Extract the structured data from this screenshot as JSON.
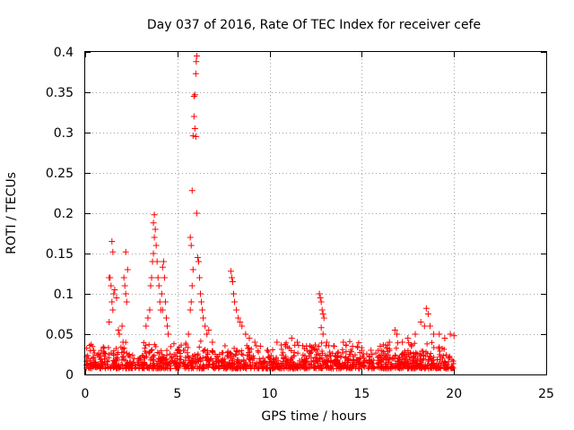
{
  "chart_data": {
    "type": "scatter",
    "title": "Day 037 of 2016, Rate Of TEC Index for receiver cefe",
    "xlabel": "GPS time / hours",
    "ylabel": "ROTI / TECUs",
    "xlim": [
      0,
      25
    ],
    "ylim": [
      0,
      0.4
    ],
    "xticks": [
      0,
      5,
      10,
      15,
      20,
      25
    ],
    "xtick_labels": [
      "0",
      "5",
      "10",
      "15",
      "20",
      "25"
    ],
    "yticks": [
      0,
      0.05,
      0.1,
      0.15,
      0.2,
      0.25,
      0.3,
      0.35,
      0.4
    ],
    "ytick_labels": [
      "0",
      "0.05",
      "0.1",
      "0.15",
      "0.2",
      "0.25",
      "0.3",
      "0.35",
      "0.4"
    ],
    "grid": true,
    "legend": false,
    "marker": "+",
    "color": "#ff0000",
    "series": [
      {
        "values": [
          [
            1.3,
            0.12
          ],
          [
            1.35,
            0.12
          ],
          [
            1.4,
            0.11
          ],
          [
            1.45,
            0.09
          ],
          [
            1.5,
            0.08
          ],
          [
            1.45,
            0.165
          ],
          [
            1.5,
            0.152
          ],
          [
            1.3,
            0.065
          ],
          [
            1.55,
            0.1
          ],
          [
            1.6,
            0.105
          ],
          [
            1.7,
            0.095
          ],
          [
            1.8,
            0.055
          ],
          [
            1.85,
            0.05
          ],
          [
            2.0,
            0.06
          ],
          [
            2.05,
            0.04
          ],
          [
            2.1,
            0.12
          ],
          [
            2.15,
            0.11
          ],
          [
            2.2,
            0.1
          ],
          [
            2.25,
            0.09
          ],
          [
            2.2,
            0.152
          ],
          [
            2.3,
            0.13
          ],
          [
            3.3,
            0.06
          ],
          [
            3.4,
            0.07
          ],
          [
            3.5,
            0.08
          ],
          [
            3.55,
            0.11
          ],
          [
            3.6,
            0.12
          ],
          [
            3.65,
            0.14
          ],
          [
            3.7,
            0.15
          ],
          [
            3.75,
            0.17
          ],
          [
            3.7,
            0.188
          ],
          [
            3.75,
            0.198
          ],
          [
            3.8,
            0.18
          ],
          [
            3.85,
            0.16
          ],
          [
            3.9,
            0.14
          ],
          [
            3.95,
            0.12
          ],
          [
            4.0,
            0.11
          ],
          [
            4.05,
            0.09
          ],
          [
            4.1,
            0.08
          ],
          [
            4.15,
            0.1
          ],
          [
            4.2,
            0.08
          ],
          [
            4.2,
            0.133
          ],
          [
            4.25,
            0.14
          ],
          [
            4.3,
            0.12
          ],
          [
            4.35,
            0.09
          ],
          [
            4.4,
            0.07
          ],
          [
            4.45,
            0.06
          ],
          [
            4.5,
            0.05
          ],
          [
            5.4,
            0.03
          ],
          [
            5.6,
            0.05
          ],
          [
            5.7,
            0.08
          ],
          [
            5.75,
            0.09
          ],
          [
            5.8,
            0.11
          ],
          [
            5.85,
            0.13
          ],
          [
            5.7,
            0.17
          ],
          [
            5.75,
            0.16
          ],
          [
            5.8,
            0.228
          ],
          [
            5.85,
            0.296
          ],
          [
            5.9,
            0.32
          ],
          [
            5.9,
            0.345
          ],
          [
            5.95,
            0.347
          ],
          [
            6.0,
            0.373
          ],
          [
            6.02,
            0.388
          ],
          [
            6.05,
            0.395
          ],
          [
            5.95,
            0.305
          ],
          [
            6.0,
            0.295
          ],
          [
            6.05,
            0.2
          ],
          [
            6.1,
            0.145
          ],
          [
            6.15,
            0.14
          ],
          [
            6.2,
            0.12
          ],
          [
            6.25,
            0.1
          ],
          [
            6.3,
            0.09
          ],
          [
            6.35,
            0.08
          ],
          [
            6.4,
            0.07
          ],
          [
            6.5,
            0.06
          ],
          [
            6.6,
            0.05
          ],
          [
            6.7,
            0.055
          ],
          [
            6.9,
            0.04
          ],
          [
            7.9,
            0.128
          ],
          [
            7.95,
            0.12
          ],
          [
            8.0,
            0.115
          ],
          [
            8.05,
            0.1
          ],
          [
            8.1,
            0.09
          ],
          [
            8.2,
            0.08
          ],
          [
            8.3,
            0.07
          ],
          [
            8.4,
            0.065
          ],
          [
            8.5,
            0.06
          ],
          [
            8.7,
            0.05
          ],
          [
            8.9,
            0.045
          ],
          [
            9.2,
            0.04
          ],
          [
            9.5,
            0.035
          ],
          [
            9.9,
            0.03
          ],
          [
            10.4,
            0.04
          ],
          [
            11.2,
            0.045
          ],
          [
            11.5,
            0.04
          ],
          [
            12.0,
            0.035
          ],
          [
            12.3,
            0.03
          ],
          [
            12.7,
            0.1
          ],
          [
            12.75,
            0.095
          ],
          [
            12.8,
            0.09
          ],
          [
            12.85,
            0.08
          ],
          [
            12.9,
            0.075
          ],
          [
            12.95,
            0.07
          ],
          [
            12.8,
            0.058
          ],
          [
            12.9,
            0.05
          ],
          [
            13.1,
            0.04
          ],
          [
            13.5,
            0.035
          ],
          [
            14.0,
            0.04
          ],
          [
            14.5,
            0.035
          ],
          [
            15.0,
            0.03
          ],
          [
            15.5,
            0.03
          ],
          [
            16.0,
            0.035
          ],
          [
            16.5,
            0.04
          ],
          [
            16.8,
            0.055
          ],
          [
            16.9,
            0.05
          ],
          [
            17.2,
            0.04
          ],
          [
            17.5,
            0.045
          ],
          [
            17.9,
            0.05
          ],
          [
            18.2,
            0.065
          ],
          [
            18.4,
            0.06
          ],
          [
            18.5,
            0.082
          ],
          [
            18.6,
            0.075
          ],
          [
            18.7,
            0.06
          ],
          [
            18.9,
            0.05
          ],
          [
            19.2,
            0.05
          ],
          [
            19.5,
            0.045
          ],
          [
            19.8,
            0.05
          ],
          [
            20.0,
            0.048
          ]
        ]
      }
    ]
  }
}
